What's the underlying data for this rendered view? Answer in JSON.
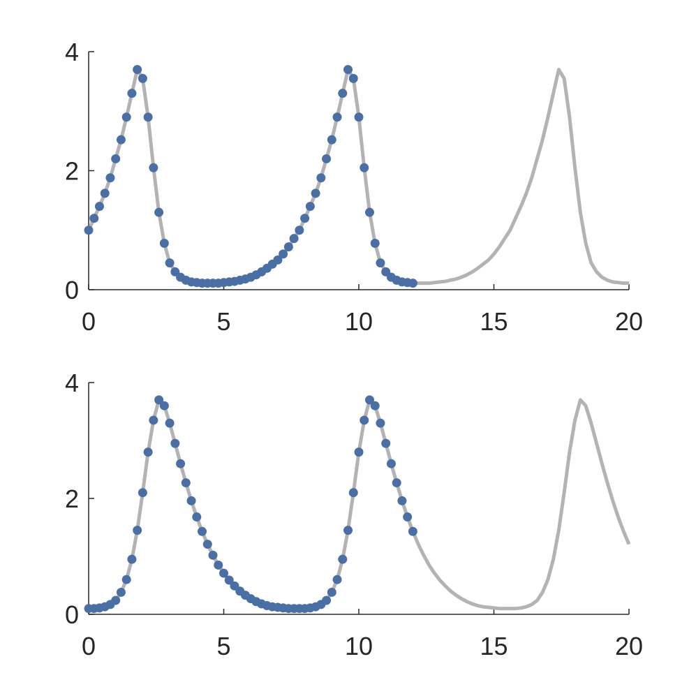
{
  "chart_data": [
    {
      "type": "line",
      "xlim": [
        0,
        20
      ],
      "ylim": [
        0,
        4
      ],
      "xticks": [
        0,
        5,
        10,
        15,
        20
      ],
      "yticks": [
        0,
        2,
        4
      ],
      "series": [
        {
          "mode": "line",
          "color": "#b3b3b3",
          "x": [
            0,
            0.2,
            0.4,
            0.6,
            0.8,
            1,
            1.2,
            1.4,
            1.6,
            1.8,
            2,
            2.2,
            2.4,
            2.6,
            2.8,
            3,
            3.2,
            3.4,
            3.6,
            3.8,
            4,
            4.2,
            4.4,
            4.6,
            4.8,
            5,
            5.2,
            5.4,
            5.6,
            5.8,
            6,
            6.2,
            6.4,
            6.6,
            6.8,
            7,
            7.2,
            7.4,
            7.6,
            7.8,
            8,
            8.2,
            8.4,
            8.6,
            8.8,
            9,
            9.2,
            9.4,
            9.6,
            9.8,
            10,
            10.2,
            10.4,
            10.6,
            10.8,
            11,
            11.2,
            11.4,
            11.6,
            11.8,
            12,
            12.2,
            12.4,
            12.6,
            12.8,
            13,
            13.2,
            13.4,
            13.6,
            13.8,
            14,
            14.2,
            14.4,
            14.6,
            14.8,
            15,
            15.2,
            15.4,
            15.6,
            15.8,
            16,
            16.2,
            16.4,
            16.6,
            16.8,
            17,
            17.2,
            17.4,
            17.6,
            17.8,
            18,
            18.2,
            18.4,
            18.6,
            18.8,
            19,
            19.2,
            19.4,
            19.6,
            19.8,
            20
          ],
          "values": [
            1.0,
            1.2,
            1.4,
            1.62,
            1.88,
            2.2,
            2.52,
            2.9,
            3.3,
            3.7,
            3.55,
            2.9,
            2.05,
            1.3,
            0.78,
            0.45,
            0.3,
            0.21,
            0.16,
            0.13,
            0.12,
            0.11,
            0.11,
            0.11,
            0.11,
            0.12,
            0.13,
            0.14,
            0.16,
            0.18,
            0.21,
            0.25,
            0.3,
            0.36,
            0.43,
            0.5,
            0.6,
            0.72,
            0.86,
            1.0,
            1.2,
            1.4,
            1.62,
            1.88,
            2.2,
            2.52,
            2.9,
            3.3,
            3.7,
            3.55,
            2.9,
            2.05,
            1.3,
            0.78,
            0.45,
            0.3,
            0.21,
            0.16,
            0.13,
            0.12,
            0.11,
            0.11,
            0.11,
            0.11,
            0.12,
            0.13,
            0.14,
            0.16,
            0.18,
            0.21,
            0.25,
            0.3,
            0.36,
            0.43,
            0.5,
            0.6,
            0.72,
            0.86,
            1.0,
            1.2,
            1.4,
            1.62,
            1.88,
            2.2,
            2.52,
            2.9,
            3.3,
            3.7,
            3.55,
            2.9,
            2.05,
            1.3,
            0.78,
            0.45,
            0.3,
            0.21,
            0.16,
            0.13,
            0.12,
            0.11,
            0.11
          ]
        },
        {
          "mode": "markers",
          "color": "#4a6fa5",
          "x": [
            0,
            0.2,
            0.4,
            0.6,
            0.8,
            1,
            1.2,
            1.4,
            1.6,
            1.8,
            2,
            2.2,
            2.4,
            2.6,
            2.8,
            3,
            3.2,
            3.4,
            3.6,
            3.8,
            4,
            4.2,
            4.4,
            4.6,
            4.8,
            5,
            5.2,
            5.4,
            5.6,
            5.8,
            6,
            6.2,
            6.4,
            6.6,
            6.8,
            7,
            7.2,
            7.4,
            7.6,
            7.8,
            8,
            8.2,
            8.4,
            8.6,
            8.8,
            9,
            9.2,
            9.4,
            9.6,
            9.8,
            10,
            10.2,
            10.4,
            10.6,
            10.8,
            11,
            11.2,
            11.4,
            11.6,
            11.8,
            12
          ],
          "values": [
            1.0,
            1.2,
            1.4,
            1.62,
            1.88,
            2.2,
            2.52,
            2.9,
            3.3,
            3.7,
            3.55,
            2.9,
            2.05,
            1.3,
            0.78,
            0.45,
            0.3,
            0.21,
            0.16,
            0.13,
            0.12,
            0.11,
            0.11,
            0.11,
            0.11,
            0.12,
            0.13,
            0.14,
            0.16,
            0.18,
            0.21,
            0.25,
            0.3,
            0.36,
            0.43,
            0.5,
            0.6,
            0.72,
            0.86,
            1.0,
            1.2,
            1.4,
            1.62,
            1.88,
            2.2,
            2.52,
            2.9,
            3.3,
            3.7,
            3.55,
            2.9,
            2.05,
            1.3,
            0.78,
            0.45,
            0.3,
            0.21,
            0.16,
            0.13,
            0.12,
            0.11
          ]
        }
      ]
    },
    {
      "type": "line",
      "xlim": [
        0,
        20
      ],
      "ylim": [
        0,
        4
      ],
      "xticks": [
        0,
        5,
        10,
        15,
        20
      ],
      "yticks": [
        0,
        2,
        4
      ],
      "series": [
        {
          "mode": "line",
          "color": "#b3b3b3",
          "x": [
            0,
            0.2,
            0.4,
            0.6,
            0.8,
            1,
            1.2,
            1.4,
            1.6,
            1.8,
            2,
            2.2,
            2.4,
            2.6,
            2.8,
            3,
            3.2,
            3.4,
            3.6,
            3.8,
            4,
            4.2,
            4.4,
            4.6,
            4.8,
            5,
            5.2,
            5.4,
            5.6,
            5.8,
            6,
            6.2,
            6.4,
            6.6,
            6.8,
            7,
            7.2,
            7.4,
            7.6,
            7.8,
            8,
            8.2,
            8.4,
            8.6,
            8.8,
            9,
            9.2,
            9.4,
            9.6,
            9.8,
            10,
            10.2,
            10.4,
            10.6,
            10.8,
            11,
            11.2,
            11.4,
            11.6,
            11.8,
            12,
            12.2,
            12.4,
            12.6,
            12.8,
            13,
            13.2,
            13.4,
            13.6,
            13.8,
            14,
            14.2,
            14.4,
            14.6,
            14.8,
            15,
            15.2,
            15.4,
            15.6,
            15.8,
            16,
            16.2,
            16.4,
            16.6,
            16.8,
            17,
            17.2,
            17.4,
            17.6,
            17.8,
            18,
            18.2,
            18.4,
            18.6,
            18.8,
            19,
            19.2,
            19.4,
            19.6,
            19.8,
            20
          ],
          "values": [
            0.1,
            0.1,
            0.11,
            0.13,
            0.17,
            0.24,
            0.38,
            0.6,
            0.95,
            1.45,
            2.1,
            2.8,
            3.35,
            3.7,
            3.6,
            3.3,
            2.95,
            2.6,
            2.27,
            1.96,
            1.68,
            1.43,
            1.21,
            1.02,
            0.85,
            0.71,
            0.59,
            0.49,
            0.4,
            0.33,
            0.27,
            0.22,
            0.18,
            0.15,
            0.13,
            0.12,
            0.11,
            0.1,
            0.1,
            0.1,
            0.1,
            0.11,
            0.13,
            0.17,
            0.24,
            0.38,
            0.6,
            0.95,
            1.45,
            2.1,
            2.8,
            3.35,
            3.7,
            3.6,
            3.3,
            2.95,
            2.6,
            2.27,
            1.96,
            1.68,
            1.43,
            1.21,
            1.02,
            0.85,
            0.71,
            0.59,
            0.49,
            0.4,
            0.33,
            0.27,
            0.22,
            0.18,
            0.15,
            0.13,
            0.12,
            0.11,
            0.1,
            0.1,
            0.1,
            0.1,
            0.11,
            0.13,
            0.17,
            0.24,
            0.38,
            0.6,
            0.95,
            1.45,
            2.1,
            2.8,
            3.35,
            3.7,
            3.6,
            3.3,
            2.95,
            2.6,
            2.27,
            1.96,
            1.68,
            1.43,
            1.21
          ]
        },
        {
          "mode": "markers",
          "color": "#4a6fa5",
          "x": [
            0,
            0.2,
            0.4,
            0.6,
            0.8,
            1,
            1.2,
            1.4,
            1.6,
            1.8,
            2,
            2.2,
            2.4,
            2.6,
            2.8,
            3,
            3.2,
            3.4,
            3.6,
            3.8,
            4,
            4.2,
            4.4,
            4.6,
            4.8,
            5,
            5.2,
            5.4,
            5.6,
            5.8,
            6,
            6.2,
            6.4,
            6.6,
            6.8,
            7,
            7.2,
            7.4,
            7.6,
            7.8,
            8,
            8.2,
            8.4,
            8.6,
            8.8,
            9,
            9.2,
            9.4,
            9.6,
            9.8,
            10,
            10.2,
            10.4,
            10.6,
            10.8,
            11,
            11.2,
            11.4,
            11.6,
            11.8,
            12
          ],
          "values": [
            0.1,
            0.1,
            0.11,
            0.13,
            0.17,
            0.24,
            0.38,
            0.6,
            0.95,
            1.45,
            2.1,
            2.8,
            3.35,
            3.7,
            3.6,
            3.3,
            2.95,
            2.6,
            2.27,
            1.96,
            1.68,
            1.43,
            1.21,
            1.02,
            0.85,
            0.71,
            0.59,
            0.49,
            0.4,
            0.33,
            0.27,
            0.22,
            0.18,
            0.15,
            0.13,
            0.12,
            0.11,
            0.1,
            0.1,
            0.1,
            0.1,
            0.11,
            0.13,
            0.17,
            0.24,
            0.38,
            0.6,
            0.95,
            1.45,
            2.1,
            2.8,
            3.35,
            3.7,
            3.6,
            3.3,
            2.95,
            2.6,
            2.27,
            1.96,
            1.68,
            1.43
          ]
        }
      ]
    }
  ]
}
